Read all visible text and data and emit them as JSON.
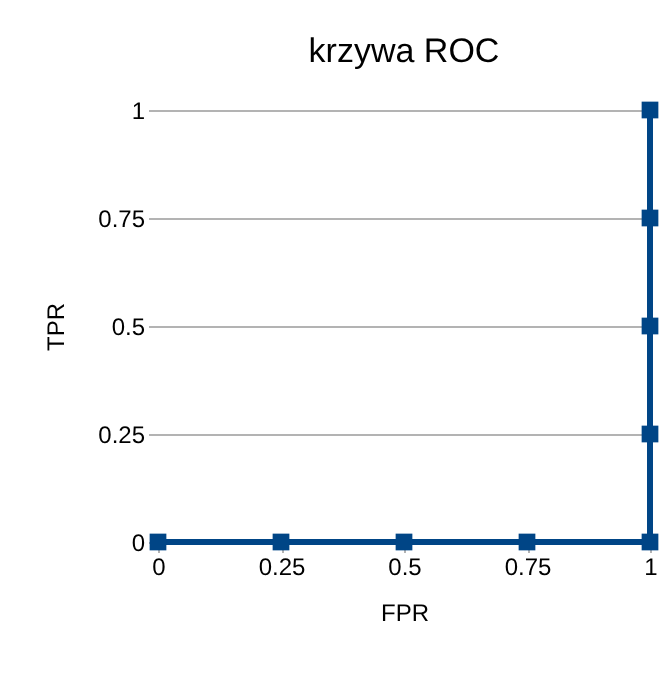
{
  "chart_data": {
    "type": "line",
    "title": "krzywa ROC",
    "xlabel": "FPR",
    "ylabel": "TPR",
    "x": [
      0,
      0.25,
      0.5,
      0.75,
      1,
      1,
      1,
      1,
      1
    ],
    "series": [
      {
        "color": "#004586",
        "values": [
          0,
          0,
          0,
          0,
          0,
          0.25,
          0.5,
          0.75,
          1
        ]
      }
    ],
    "xlim": [
      0,
      1
    ],
    "xticks": [
      0,
      0.25,
      0.5,
      0.75,
      1
    ],
    "ylim": [
      0,
      1
    ],
    "yticks": [
      0,
      0.25,
      0.5,
      0.75,
      1
    ],
    "grid": "y",
    "marker": "square",
    "line_style": "solid",
    "legend": false
  }
}
